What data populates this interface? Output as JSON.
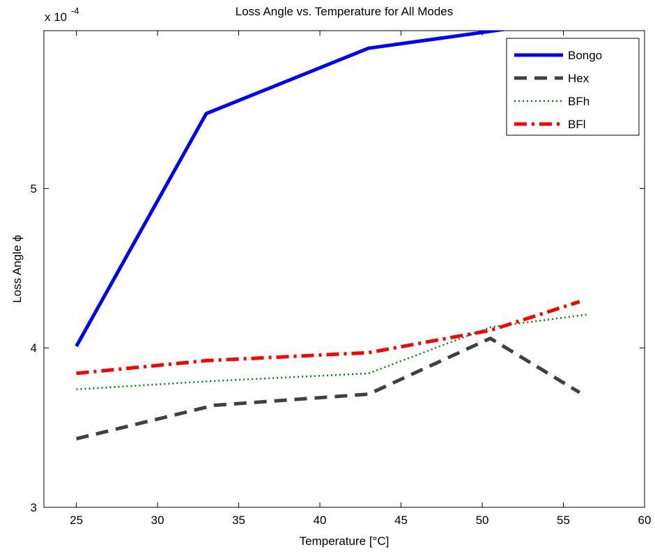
{
  "chart_data": {
    "type": "line",
    "title": "Loss Angle vs. Temperature for All Modes",
    "xlabel": "Temperature [°C]",
    "ylabel": "Loss Angle ϕ",
    "y_multiplier_base": "x 10",
    "y_multiplier_exp": "-4",
    "xlim": [
      23,
      60
    ],
    "ylim": [
      3,
      5.99
    ],
    "x_ticks": [
      25,
      30,
      35,
      40,
      45,
      50,
      55,
      60
    ],
    "x_tick_labels": [
      "25",
      "30",
      "35",
      "40",
      "45",
      "50",
      "55",
      "60"
    ],
    "y_ticks": [
      3,
      4,
      5
    ],
    "y_tick_labels": [
      "3",
      "4",
      "5"
    ],
    "grid": false,
    "legend_position": "top-right",
    "series": [
      {
        "name": "Bongo",
        "color": "#0000ff",
        "style": "solid",
        "x": [
          25,
          33,
          43,
          51.5
        ],
        "y": [
          4.01,
          5.47,
          5.88,
          6.0
        ]
      },
      {
        "name": "Hex",
        "color": "#404040",
        "style": "dashed",
        "x": [
          25,
          33.5,
          43,
          50.5,
          56
        ],
        "y": [
          3.43,
          3.64,
          3.71,
          4.06,
          3.72
        ]
      },
      {
        "name": "BFh",
        "color": "#008000",
        "style": "dotted",
        "x": [
          25,
          33,
          43,
          50.5,
          56.5
        ],
        "y": [
          3.74,
          3.79,
          3.84,
          4.13,
          4.21
        ]
      },
      {
        "name": "BFl",
        "color": "#ff0000",
        "style": "dashdot",
        "x": [
          25,
          33,
          43,
          50.5,
          56
        ],
        "y": [
          3.84,
          3.92,
          3.97,
          4.11,
          4.29
        ]
      }
    ],
    "legend_labels": [
      "Bongo",
      "Hex",
      "BFh",
      "BFl"
    ]
  }
}
